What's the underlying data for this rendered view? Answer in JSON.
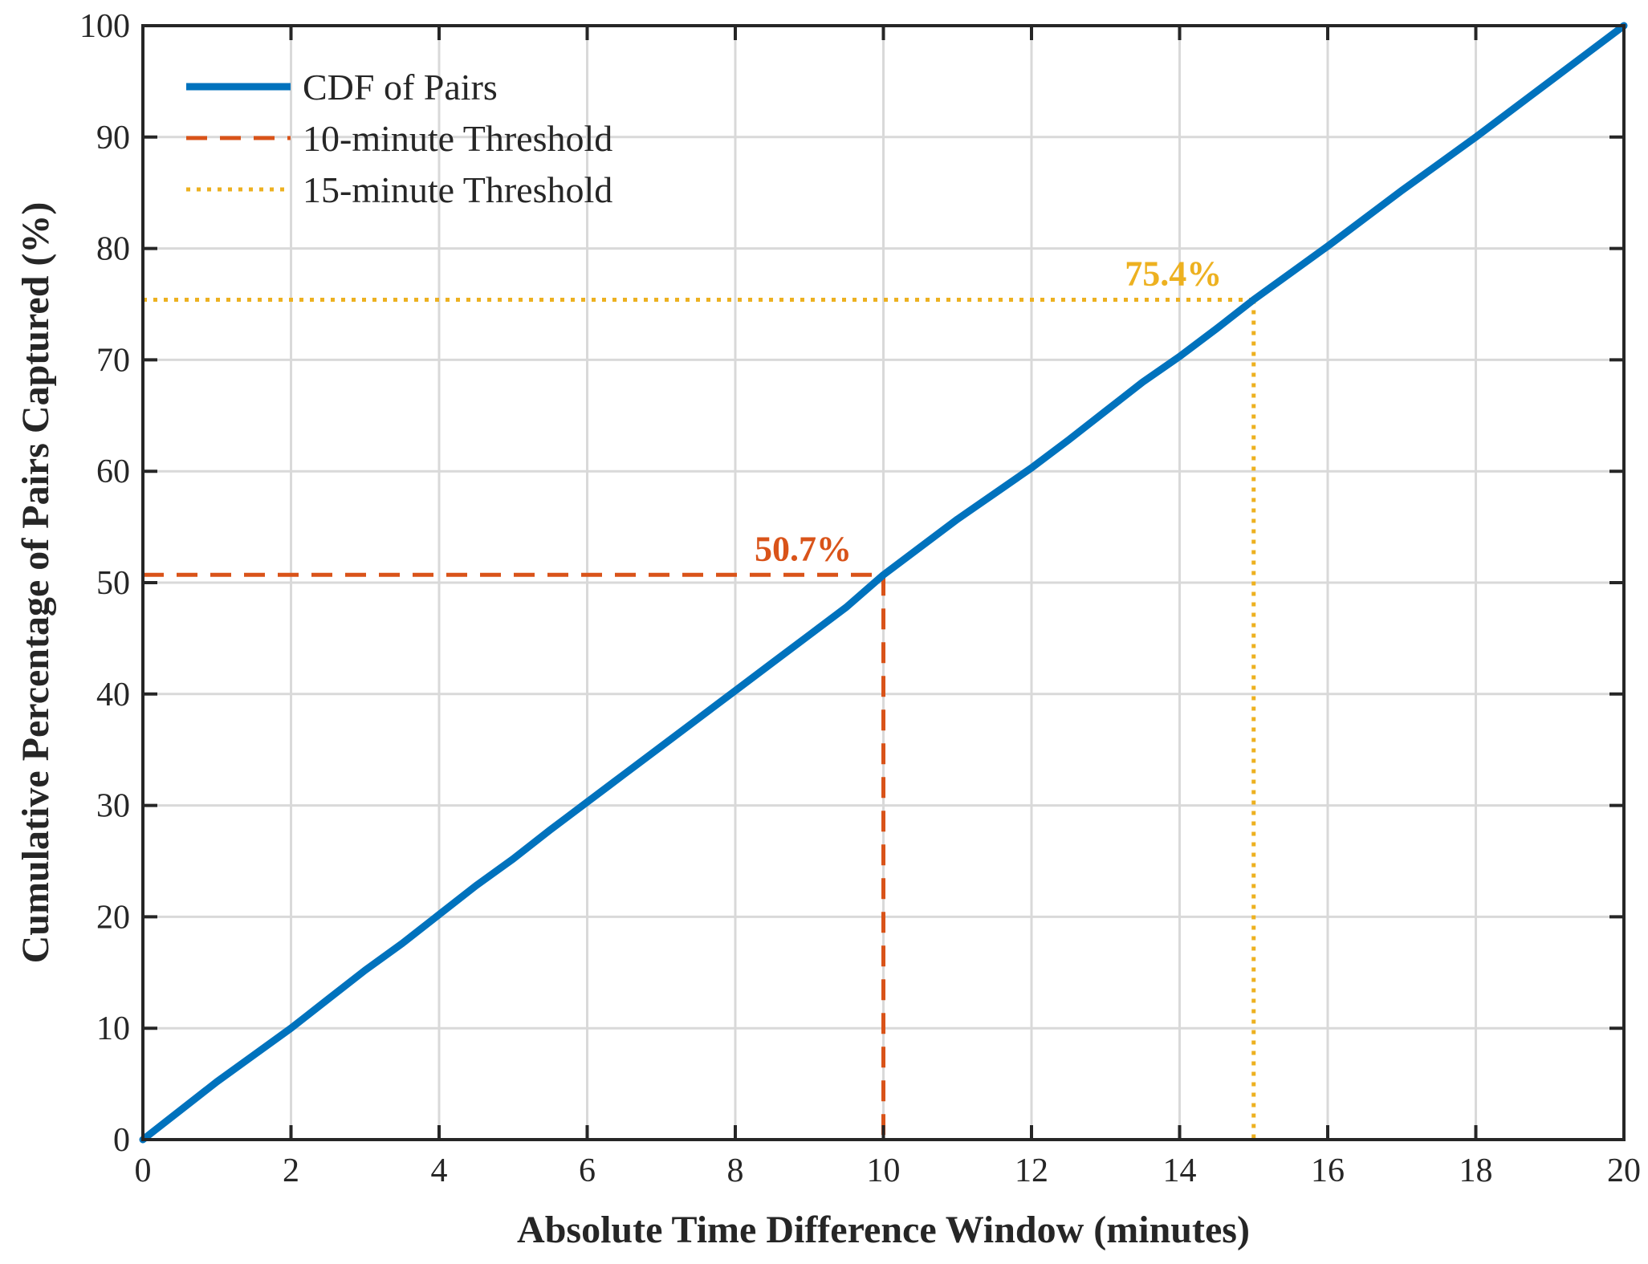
{
  "chart_data": {
    "type": "line",
    "xlabel": "Absolute Time Difference Window (minutes)",
    "ylabel": "Cumulative Percentage of Pairs Captured (%)",
    "xlim": [
      0,
      20
    ],
    "ylim": [
      0,
      100
    ],
    "xticks": [
      0,
      2,
      4,
      6,
      8,
      10,
      12,
      14,
      16,
      18,
      20
    ],
    "yticks": [
      0,
      10,
      20,
      30,
      40,
      50,
      60,
      70,
      80,
      90,
      100
    ],
    "grid": true,
    "legend_position": "top-left",
    "series": [
      {
        "name": "CDF of Pairs",
        "color": "#0072BD",
        "style": "solid",
        "x": [
          0,
          0.5,
          1,
          1.5,
          2,
          2.5,
          3,
          3.5,
          4,
          4.5,
          5,
          5.5,
          6,
          6.5,
          7,
          7.5,
          8,
          8.5,
          9,
          9.5,
          10,
          10.5,
          11,
          11.5,
          12,
          12.5,
          13,
          13.5,
          14,
          14.5,
          15,
          15.5,
          16,
          16.5,
          17,
          17.5,
          18,
          18.5,
          19,
          19.5,
          20
        ],
        "y": [
          0,
          2.6,
          5.2,
          7.6,
          10.0,
          12.6,
          15.2,
          17.6,
          20.2,
          22.8,
          25.2,
          27.8,
          30.3,
          32.8,
          35.3,
          37.8,
          40.3,
          42.8,
          45.3,
          47.8,
          50.7,
          53.2,
          55.7,
          58.0,
          60.3,
          62.8,
          65.4,
          68.0,
          70.3,
          72.8,
          75.4,
          77.8,
          80.2,
          82.7,
          85.2,
          87.6,
          90.0,
          92.5,
          95.0,
          97.5,
          100.0
        ]
      },
      {
        "name": "10-minute Threshold",
        "color": "#D95319",
        "style": "dashed",
        "threshold_x": 10,
        "threshold_y": 50.7
      },
      {
        "name": "15-minute Threshold",
        "color": "#EDB120",
        "style": "dotted",
        "threshold_x": 15,
        "threshold_y": 75.4
      }
    ],
    "annotations": [
      {
        "text": "50.7%",
        "x": 10,
        "y": 50.7,
        "color": "#D95319"
      },
      {
        "text": "75.4%",
        "x": 15,
        "y": 75.4,
        "color": "#EDB120"
      }
    ]
  }
}
